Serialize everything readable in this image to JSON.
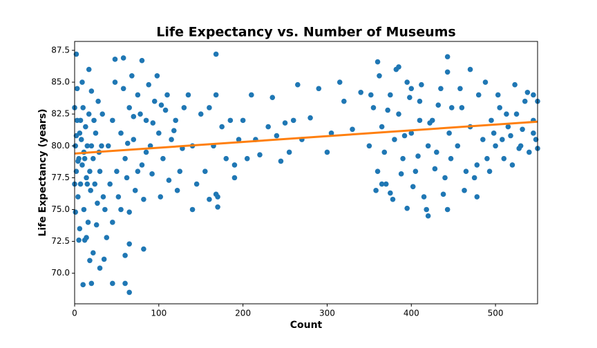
{
  "chart_data": {
    "type": "scatter",
    "title": "Life Expectancy vs. Number of Museums",
    "xlabel": "Count",
    "ylabel": "Life Expectancy (years)",
    "xlim": [
      0,
      550
    ],
    "ylim": [
      67.6,
      88.2
    ],
    "xticks": [
      0,
      100,
      200,
      300,
      400,
      500
    ],
    "yticks": [
      {
        "value": 70,
        "label": "70.0"
      },
      72.5,
      {
        "value": 75,
        "label": "75.0"
      },
      77.5,
      {
        "value": 80,
        "label": "80.0"
      },
      82.5,
      {
        "value": 85,
        "label": "85.0"
      },
      87.5
    ],
    "series": [
      {
        "type": "scatter",
        "color": "#1f77b4",
        "x": [
          1,
          2,
          3,
          4,
          5,
          6,
          7,
          8,
          9,
          10,
          11,
          12,
          13,
          14,
          15,
          16,
          17,
          18,
          19,
          20,
          22,
          24,
          25,
          27,
          28,
          30,
          32,
          34,
          3,
          6,
          1,
          9,
          20,
          26,
          14,
          0,
          0,
          2,
          4,
          7,
          11,
          15,
          23,
          29,
          33,
          36,
          40,
          45,
          50,
          55,
          60,
          65,
          70,
          75,
          80,
          85,
          90,
          95,
          100,
          105,
          110,
          115,
          120,
          125,
          130,
          42,
          48,
          52,
          58,
          62,
          68,
          72,
          78,
          82,
          88,
          92,
          98,
          102,
          108,
          112,
          118,
          122,
          128,
          135,
          140,
          145,
          150,
          55,
          65,
          45,
          75,
          85,
          63,
          70,
          93,
          103,
          155,
          160,
          165,
          170,
          168,
          175,
          180,
          185,
          190,
          195,
          200,
          205,
          210,
          215,
          220,
          230,
          235,
          240,
          245,
          250,
          255,
          260,
          265,
          270,
          280,
          290,
          300,
          305,
          315,
          320,
          330,
          340,
          170,
          168,
          140,
          160,
          190,
          350,
          355,
          360,
          365,
          370,
          375,
          380,
          385,
          390,
          395,
          400,
          405,
          410,
          415,
          420,
          425,
          430,
          435,
          440,
          445,
          448,
          352,
          358,
          362,
          368,
          372,
          378,
          382,
          388,
          392,
          398,
          402,
          408,
          412,
          418,
          422,
          428,
          432,
          438,
          443,
          443,
          447,
          360,
          385,
          443,
          420,
          395,
          365,
          375,
          410,
          400,
          455,
          460,
          465,
          470,
          475,
          480,
          485,
          490,
          495,
          500,
          505,
          510,
          515,
          520,
          525,
          530,
          535,
          540,
          545,
          548,
          470,
          478,
          488,
          463,
          458,
          493,
          503,
          513,
          518,
          528,
          538,
          545,
          550,
          550,
          545,
          532,
          478,
          498,
          508,
          523,
          10,
          20,
          45,
          60,
          65,
          30,
          18,
          22,
          35,
          60,
          65,
          82,
          5,
          12,
          38,
          2,
          48,
          58,
          80,
          168,
          17
        ],
        "values": [
          80,
          78,
          82,
          76,
          79,
          81,
          77,
          80.5,
          78.5,
          83,
          75,
          79,
          81.5,
          77.5,
          80,
          74,
          82.5,
          78,
          76.5,
          80,
          79,
          77,
          81,
          75.5,
          83.5,
          78,
          80,
          76,
          84.5,
          73.5,
          74.8,
          85,
          84.3,
          73.8,
          72.8,
          77,
          83,
          80.8,
          78.8,
          82,
          79.5,
          77,
          82,
          79.5,
          82.5,
          75,
          80,
          82,
          78,
          81,
          79,
          83,
          80.5,
          84,
          78.5,
          82,
          80,
          83.5,
          81,
          79,
          84,
          80.5,
          82,
          78,
          83,
          77,
          85,
          76,
          84.5,
          77.5,
          85.5,
          76.5,
          82.5,
          75.8,
          84.8,
          77.8,
          85.5,
          76,
          82.8,
          77.3,
          81.2,
          76.5,
          79.8,
          84,
          80,
          77,
          82.5,
          75,
          74.8,
          74,
          78,
          79.5,
          80.2,
          82.3,
          81.8,
          83.2,
          78,
          83,
          80,
          76,
          84,
          81.5,
          79,
          82,
          77.5,
          80.5,
          82,
          79,
          84,
          80.5,
          79.3,
          81.5,
          83.8,
          80.8,
          78.8,
          81.8,
          79.5,
          82,
          84.8,
          80.5,
          82.2,
          84.5,
          79.5,
          81,
          85,
          83.5,
          81.3,
          84.2,
          75.2,
          76.2,
          75,
          75.8,
          78.5,
          80,
          83,
          78,
          81.5,
          77,
          84,
          80.5,
          82.5,
          79,
          85,
          81,
          78,
          83.5,
          76,
          80,
          82,
          79.5,
          84.5,
          77.5,
          81,
          83,
          84,
          76.5,
          85.5,
          79.5,
          82.8,
          75.8,
          86,
          77.8,
          80.8,
          83.8,
          76.8,
          79.2,
          84.8,
          75,
          81.8,
          78.2,
          83.2,
          76.2,
          85.8,
          75,
          79,
          86.6,
          86.2,
          87,
          74.5,
          75.1,
          77,
          76.3,
          82,
          84.5,
          80,
          83,
          78,
          81.5,
          77.5,
          84,
          80.5,
          79,
          82,
          80,
          83,
          79,
          81.5,
          78.5,
          82.5,
          80,
          83.5,
          79.5,
          82,
          80.5,
          86,
          76,
          85,
          76.5,
          84.5,
          78,
          84,
          82.5,
          80.8,
          79.8,
          84.2,
          84,
          83.5,
          79.8,
          81,
          81.3,
          78.5,
          81,
          80.5,
          84.8,
          69.1,
          69.2,
          69.2,
          69.2,
          68.5,
          70.4,
          71,
          71.6,
          71.1,
          71.4,
          72.3,
          71.9,
          72.6,
          72.6,
          72.8,
          87.2,
          86.8,
          86.9,
          86.7,
          87.2,
          86
        ]
      },
      {
        "type": "line",
        "color": "#ff7f0e",
        "x": [
          0,
          550
        ],
        "values": [
          79.4,
          81.9
        ]
      }
    ]
  }
}
